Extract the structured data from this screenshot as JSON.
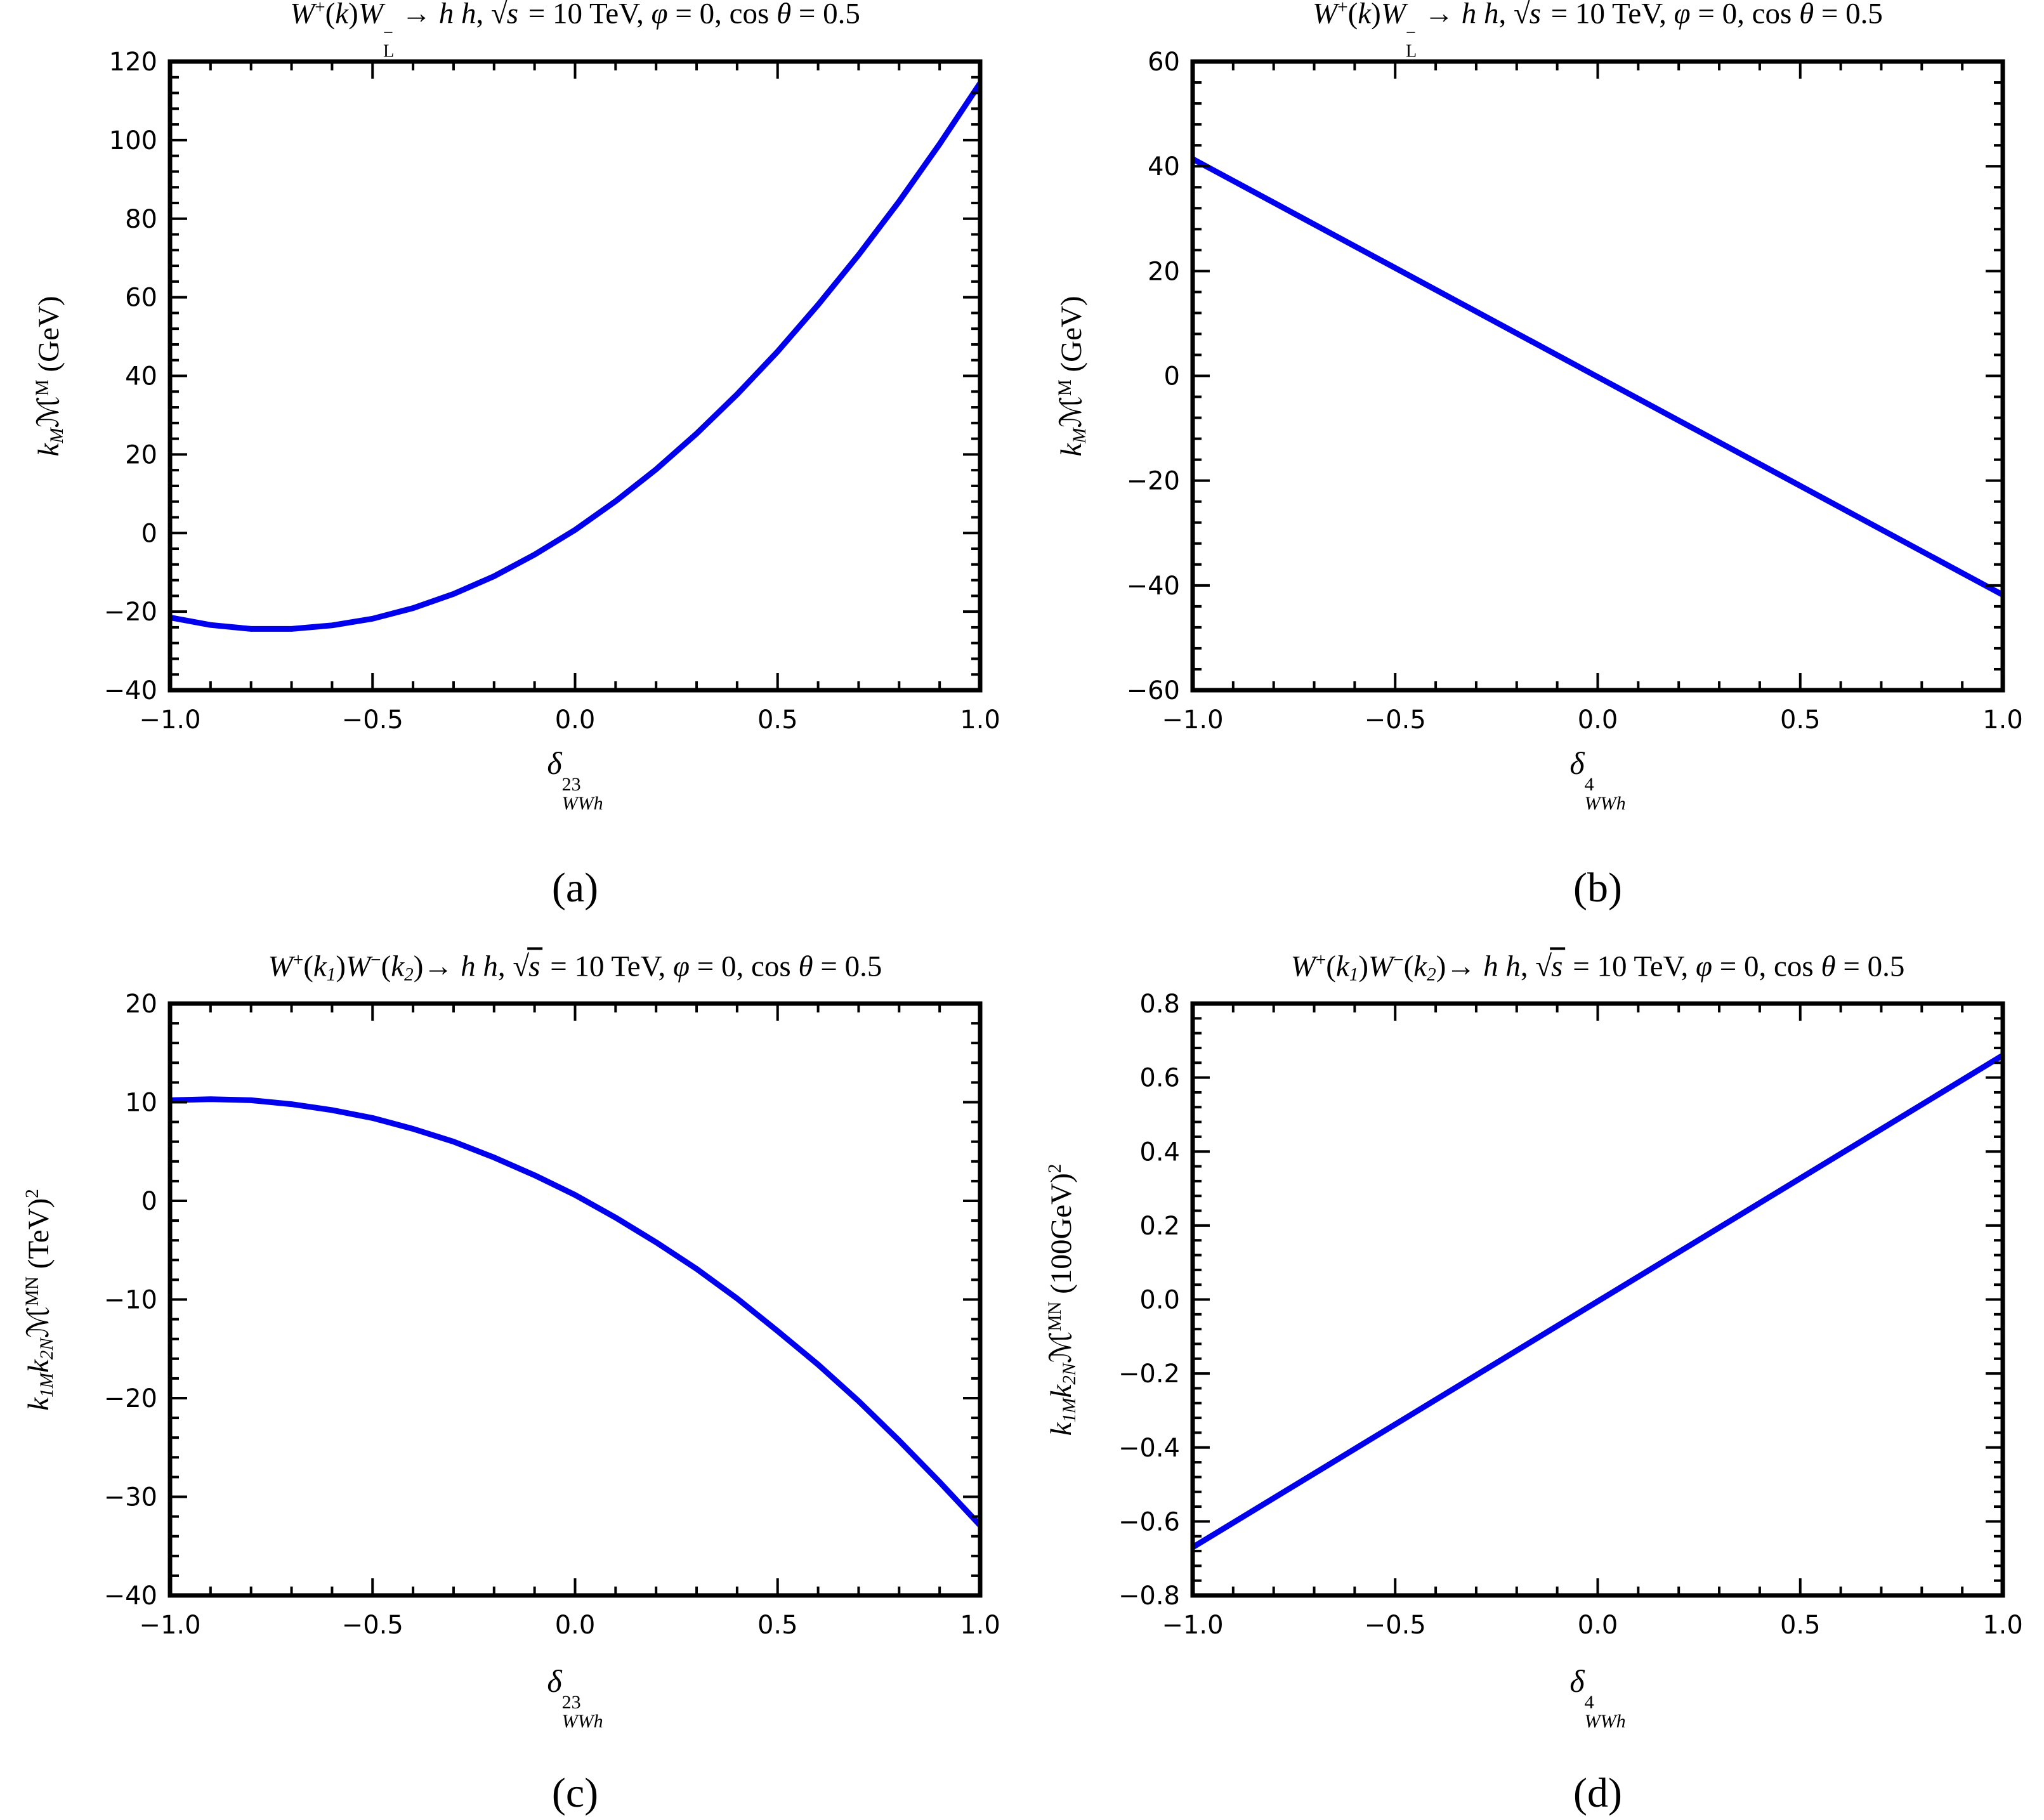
{
  "page": {
    "background": "#ffffff",
    "frame_color": "#000000",
    "tick_label_color": "#000000"
  },
  "chart_data": [
    {
      "id": "a",
      "type": "line",
      "letter": "(a)",
      "line_color": "#0000ee",
      "title": "W⁺(k)W⁻L → h h,  √s = 10 TeV,  φ = 0, cos θ = 0.5",
      "xlabel": "δ²³WWh",
      "ylabel": "kM ℳ^M (GeV)",
      "xlim": [
        -1.0,
        1.0
      ],
      "ylim": [
        -40,
        120
      ],
      "xticks": {
        "values": [
          -1.0,
          -0.5,
          0.0,
          0.5,
          1.0
        ],
        "labels": [
          "−1.0",
          "−0.5",
          "0.0",
          "0.5",
          "1.0"
        ],
        "minor_step": 0.1
      },
      "yticks": {
        "values": [
          120,
          100,
          80,
          60,
          40,
          20,
          0,
          -20,
          -40
        ],
        "labels": [
          "120",
          "100",
          "80",
          "60",
          "40",
          "20",
          "0",
          "−20",
          "−40"
        ],
        "minor_step": 4
      },
      "series": {
        "x": [
          -1,
          -0.9,
          -0.8,
          -0.7,
          -0.6,
          -0.5,
          -0.4,
          -0.3,
          -0.2,
          -0.1,
          0,
          0.1,
          0.2,
          0.3,
          0.4,
          0.5,
          0.6,
          0.7,
          0.8,
          0.9,
          1
        ],
        "y": [
          -21.5,
          -23.4,
          -24.4,
          -24.4,
          -23.5,
          -21.8,
          -19.1,
          -15.5,
          -11.0,
          -5.5,
          0.8,
          8.1,
          16.2,
          25.3,
          35.3,
          46.2,
          58.1,
          70.8,
          84.4,
          99.0,
          114.5
        ]
      },
      "title_tokens": [
        {
          "k": "it",
          "s": "W"
        },
        {
          "k": "sup",
          "s": "+"
        },
        {
          "k": "up",
          "s": "("
        },
        {
          "k": "it",
          "s": "k"
        },
        {
          "k": "up",
          "s": ")"
        },
        {
          "k": "it",
          "s": "W"
        },
        {
          "k": "ss",
          "sup": "−",
          "sub": "L",
          "subIt": false
        },
        {
          "k": "up",
          "s": " → "
        },
        {
          "k": "it",
          "s": "h h"
        },
        {
          "k": "up",
          "s": ",  "
        },
        {
          "k": "sqrt",
          "s": "s"
        },
        {
          "k": "up",
          "s": " = 10 TeV,  "
        },
        {
          "k": "it",
          "s": "φ"
        },
        {
          "k": "up",
          "s": " = 0, cos "
        },
        {
          "k": "it",
          "s": "θ"
        },
        {
          "k": "up",
          "s": " = 0.5"
        }
      ],
      "ylabel_tokens": [
        {
          "k": "it",
          "s": "k"
        },
        {
          "k": "sub",
          "s": "M"
        },
        {
          "k": "scr",
          "s": "ℳ"
        },
        {
          "k": "sup",
          "s": "M"
        },
        {
          "k": "up",
          "s": " (GeV)"
        }
      ],
      "xlabel_tokens": [
        {
          "k": "it",
          "s": "δ"
        },
        {
          "k": "ss",
          "sup": "23",
          "sub": "WWh",
          "subIt": true
        }
      ]
    },
    {
      "id": "b",
      "type": "line",
      "letter": "(b)",
      "line_color": "#0000ee",
      "title": "W⁺(k)W⁻L → h h,  √s = 10 TeV,  φ = 0, cos θ = 0.5",
      "xlabel": "δ⁴WWh",
      "ylabel": "kM ℳ^M (GeV)",
      "xlim": [
        -1.0,
        1.0
      ],
      "ylim": [
        -60,
        60
      ],
      "xticks": {
        "values": [
          -1.0,
          -0.5,
          0.0,
          0.5,
          1.0
        ],
        "labels": [
          "−1.0",
          "−0.5",
          "0.0",
          "0.5",
          "1.0"
        ],
        "minor_step": 0.1
      },
      "yticks": {
        "values": [
          60,
          40,
          20,
          0,
          -20,
          -40,
          -60
        ],
        "labels": [
          "60",
          "40",
          "20",
          "0",
          "−20",
          "−40",
          "−60"
        ],
        "minor_step": 4
      },
      "series": {
        "x": [
          -1,
          -0.5,
          0,
          0.5,
          1
        ],
        "y": [
          41.4,
          20.6,
          -0.2,
          -21.0,
          -41.8
        ]
      },
      "title_tokens": [
        {
          "k": "it",
          "s": "W"
        },
        {
          "k": "sup",
          "s": "+"
        },
        {
          "k": "up",
          "s": "("
        },
        {
          "k": "it",
          "s": "k"
        },
        {
          "k": "up",
          "s": ")"
        },
        {
          "k": "it",
          "s": "W"
        },
        {
          "k": "ss",
          "sup": "−",
          "sub": "L",
          "subIt": false
        },
        {
          "k": "up",
          "s": " → "
        },
        {
          "k": "it",
          "s": "h h"
        },
        {
          "k": "up",
          "s": ",  "
        },
        {
          "k": "sqrt",
          "s": "s"
        },
        {
          "k": "up",
          "s": " = 10 TeV,  "
        },
        {
          "k": "it",
          "s": "φ"
        },
        {
          "k": "up",
          "s": " = 0, cos "
        },
        {
          "k": "it",
          "s": "θ"
        },
        {
          "k": "up",
          "s": " = 0.5"
        }
      ],
      "ylabel_tokens": [
        {
          "k": "it",
          "s": "k"
        },
        {
          "k": "sub",
          "s": "M"
        },
        {
          "k": "scr",
          "s": "ℳ"
        },
        {
          "k": "sup",
          "s": "M"
        },
        {
          "k": "up",
          "s": " (GeV)"
        }
      ],
      "xlabel_tokens": [
        {
          "k": "it",
          "s": "δ"
        },
        {
          "k": "ss",
          "sup": "4",
          "sub": "WWh",
          "subIt": true
        }
      ]
    },
    {
      "id": "c",
      "type": "line",
      "letter": "(c)",
      "line_color": "#0000ee",
      "title": "W⁺(k₁)W⁻(k₂)→ h h,  √s = 10 TeV,  φ = 0, cos θ = 0.5",
      "xlabel": "δ²³WWh",
      "ylabel": "k1M k2N ℳ^MN (TeV)²",
      "xlim": [
        -1.0,
        1.0
      ],
      "ylim": [
        -40,
        20
      ],
      "xticks": {
        "values": [
          -1.0,
          -0.5,
          0.0,
          0.5,
          1.0
        ],
        "labels": [
          "−1.0",
          "−0.5",
          "0.0",
          "0.5",
          "1.0"
        ],
        "minor_step": 0.1
      },
      "yticks": {
        "values": [
          20,
          10,
          0,
          -10,
          -20,
          -30,
          -40
        ],
        "labels": [
          "20",
          "10",
          "0",
          "−10",
          "−20",
          "−30",
          "−40"
        ],
        "minor_step": 2
      },
      "series": {
        "x": [
          -1,
          -0.9,
          -0.8,
          -0.7,
          -0.6,
          -0.5,
          -0.4,
          -0.3,
          -0.2,
          -0.1,
          0,
          0.1,
          0.2,
          0.3,
          0.4,
          0.5,
          0.6,
          0.7,
          0.8,
          0.9,
          1
        ],
        "y": [
          10.2,
          10.3,
          10.2,
          9.8,
          9.2,
          8.4,
          7.3,
          6.0,
          4.4,
          2.6,
          0.6,
          -1.7,
          -4.2,
          -6.9,
          -9.9,
          -13.2,
          -16.6,
          -20.3,
          -24.3,
          -28.5,
          -32.9
        ]
      },
      "title_tokens": [
        {
          "k": "it",
          "s": "W"
        },
        {
          "k": "sup",
          "s": "+"
        },
        {
          "k": "up",
          "s": "("
        },
        {
          "k": "it",
          "s": "k"
        },
        {
          "k": "sub",
          "s": "1"
        },
        {
          "k": "up",
          "s": ")"
        },
        {
          "k": "it",
          "s": "W"
        },
        {
          "k": "sup",
          "s": "−"
        },
        {
          "k": "up",
          "s": "("
        },
        {
          "k": "it",
          "s": "k"
        },
        {
          "k": "sub",
          "s": "2"
        },
        {
          "k": "up",
          "s": ")"
        },
        {
          "k": "up",
          "s": "→ "
        },
        {
          "k": "it",
          "s": "h h"
        },
        {
          "k": "up",
          "s": ",  "
        },
        {
          "k": "sqrt",
          "s": "s"
        },
        {
          "k": "up",
          "s": " = 10 TeV,  "
        },
        {
          "k": "it",
          "s": "φ"
        },
        {
          "k": "up",
          "s": " = 0, cos "
        },
        {
          "k": "it",
          "s": "θ"
        },
        {
          "k": "up",
          "s": " = 0.5"
        }
      ],
      "ylabel_tokens": [
        {
          "k": "it",
          "s": "k"
        },
        {
          "k": "sub",
          "s": "1M"
        },
        {
          "k": "it",
          "s": "k"
        },
        {
          "k": "sub",
          "s": "2N"
        },
        {
          "k": "scr",
          "s": "ℳ"
        },
        {
          "k": "sup",
          "s": "MN"
        },
        {
          "k": "up",
          "s": " (TeV)"
        },
        {
          "k": "sup",
          "s": "2"
        }
      ],
      "xlabel_tokens": [
        {
          "k": "it",
          "s": "δ"
        },
        {
          "k": "ss",
          "sup": "23",
          "sub": "WWh",
          "subIt": true
        }
      ]
    },
    {
      "id": "d",
      "type": "line",
      "letter": "(d)",
      "line_color": "#0000ee",
      "title": "W⁺(k₁)W⁻(k₂)→ h h,  √s = 10 TeV,  φ = 0, cos θ = 0.5",
      "xlabel": "δ⁴WWh",
      "ylabel": "k1M k2N ℳ^MN (100GeV)²",
      "xlim": [
        -1.0,
        1.0
      ],
      "ylim": [
        -0.8,
        0.8
      ],
      "xticks": {
        "values": [
          -1.0,
          -0.5,
          0.0,
          0.5,
          1.0
        ],
        "labels": [
          "−1.0",
          "−0.5",
          "0.0",
          "0.5",
          "1.0"
        ],
        "minor_step": 0.1
      },
      "yticks": {
        "values": [
          0.8,
          0.6,
          0.4,
          0.2,
          0.0,
          -0.2,
          -0.4,
          -0.6,
          -0.8
        ],
        "labels": [
          "0.8",
          "0.6",
          "0.4",
          "0.2",
          "0.0",
          "−0.2",
          "−0.4",
          "−0.6",
          "−0.8"
        ],
        "minor_step": 0.04
      },
      "series": {
        "x": [
          -1,
          -0.5,
          0,
          0.5,
          1
        ],
        "y": [
          -0.67,
          -0.3375,
          -0.005,
          0.3275,
          0.66
        ]
      },
      "title_tokens": [
        {
          "k": "it",
          "s": "W"
        },
        {
          "k": "sup",
          "s": "+"
        },
        {
          "k": "up",
          "s": "("
        },
        {
          "k": "it",
          "s": "k"
        },
        {
          "k": "sub",
          "s": "1"
        },
        {
          "k": "up",
          "s": ")"
        },
        {
          "k": "it",
          "s": "W"
        },
        {
          "k": "sup",
          "s": "−"
        },
        {
          "k": "up",
          "s": "("
        },
        {
          "k": "it",
          "s": "k"
        },
        {
          "k": "sub",
          "s": "2"
        },
        {
          "k": "up",
          "s": ")"
        },
        {
          "k": "up",
          "s": "→ "
        },
        {
          "k": "it",
          "s": "h h"
        },
        {
          "k": "up",
          "s": ",  "
        },
        {
          "k": "sqrt",
          "s": "s"
        },
        {
          "k": "up",
          "s": " = 10 TeV,  "
        },
        {
          "k": "it",
          "s": "φ"
        },
        {
          "k": "up",
          "s": " = 0, cos "
        },
        {
          "k": "it",
          "s": "θ"
        },
        {
          "k": "up",
          "s": " = 0.5"
        }
      ],
      "ylabel_tokens": [
        {
          "k": "it",
          "s": "k"
        },
        {
          "k": "sub",
          "s": "1M"
        },
        {
          "k": "it",
          "s": "k"
        },
        {
          "k": "sub",
          "s": "2N"
        },
        {
          "k": "scr",
          "s": "ℳ"
        },
        {
          "k": "sup",
          "s": "MN"
        },
        {
          "k": "up",
          "s": " (100GeV)"
        },
        {
          "k": "sup",
          "s": "2"
        }
      ],
      "xlabel_tokens": [
        {
          "k": "it",
          "s": "δ"
        },
        {
          "k": "ss",
          "sup": "4",
          "sub": "WWh",
          "subIt": true
        }
      ]
    }
  ]
}
